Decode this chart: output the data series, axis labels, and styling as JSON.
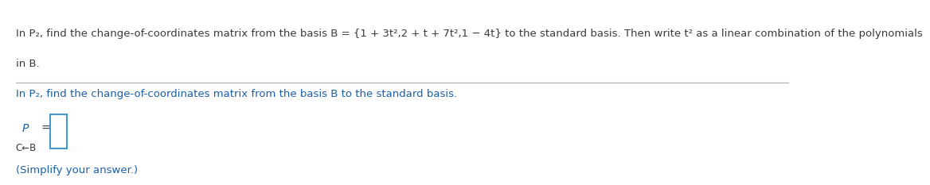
{
  "bg_color": "#ffffff",
  "line1": "In P₂, find the change-of-coordinates matrix from the basis B = {1 + 3t²,2 + t + 7t²,1 − 4t} to the standard basis. Then write t² as a linear combination of the polynomials",
  "line2": "in B.",
  "line3": "In P₂, find the change-of-coordinates matrix from the basis B to the standard basis.",
  "P_label": "P",
  "subscript_label": "C←B",
  "equals": "=",
  "simplify": "(Simplify your answer.)",
  "font_size_main": 9.5,
  "font_size_sub": 8.5,
  "text_color_dark": "#3a3a3a",
  "text_color_blue": "#1a5faa",
  "box_color": "#4499cc",
  "divider_color": "#aaaaaa"
}
